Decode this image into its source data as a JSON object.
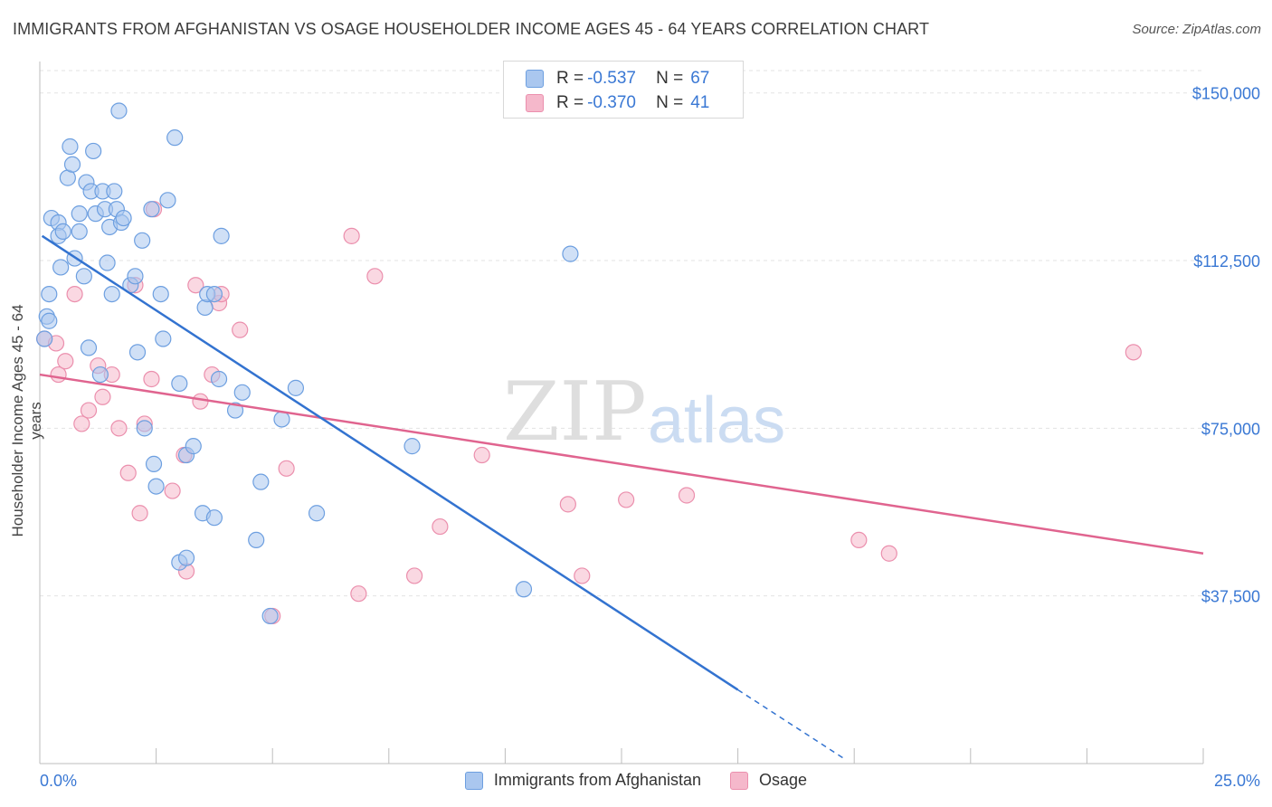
{
  "title": "IMMIGRANTS FROM AFGHANISTAN VS OSAGE HOUSEHOLDER INCOME AGES 45 - 64 YEARS CORRELATION CHART",
  "source": "Source: ZipAtlas.com",
  "watermark": {
    "zip": "ZIP",
    "atlas": "atlas"
  },
  "legend_top": {
    "rows": [
      {
        "r_label": "R = ",
        "r_value": "-0.537",
        "n_label": "N = ",
        "n_value": "67"
      },
      {
        "r_label": "R = ",
        "r_value": "-0.370",
        "n_label": "N = ",
        "n_value": "41"
      }
    ]
  },
  "colors": {
    "blue_fill": "#aac7ef",
    "blue_stroke": "#6d9fe0",
    "blue_line": "#3373d0",
    "pink_fill": "#f5b8cb",
    "pink_stroke": "#eb8fad",
    "pink_line": "#e0648f",
    "tick_text": "#3a78d4",
    "grid": "#e3e3e3"
  },
  "chart_data": {
    "type": "scatter",
    "title": "IMMIGRANTS FROM AFGHANISTAN VS OSAGE HOUSEHOLDER INCOME AGES 45 - 64 YEARS CORRELATION CHART",
    "xlabel": "",
    "ylabel": "Householder Income Ages 45 - 64 years",
    "xlim": [
      0,
      25
    ],
    "ylim": [
      0,
      155000
    ],
    "x_tick_labels": [
      "0.0%",
      "25.0%"
    ],
    "y_ticks": [
      37500,
      75000,
      112500,
      150000
    ],
    "y_tick_labels": [
      "$37,500",
      "$75,000",
      "$112,500",
      "$150,000"
    ],
    "grid": true,
    "legend_position": "bottom",
    "series": [
      {
        "name": "Immigrants from Afghanistan",
        "color": "#aac7ef",
        "trend": {
          "x0": 0.05,
          "y0": 118000,
          "x1": 15.0,
          "y1": 16500,
          "dash_to_x": 17.3,
          "dash_to_y": 1000
        },
        "points": [
          [
            0.1,
            95000
          ],
          [
            0.15,
            100000
          ],
          [
            0.2,
            99000
          ],
          [
            0.2,
            105000
          ],
          [
            0.25,
            122000
          ],
          [
            0.4,
            121000
          ],
          [
            0.4,
            118000
          ],
          [
            0.45,
            111000
          ],
          [
            0.5,
            119000
          ],
          [
            0.6,
            131000
          ],
          [
            0.65,
            138000
          ],
          [
            0.7,
            134000
          ],
          [
            0.75,
            113000
          ],
          [
            0.85,
            123000
          ],
          [
            0.85,
            119000
          ],
          [
            0.95,
            109000
          ],
          [
            1.0,
            130000
          ],
          [
            1.05,
            93000
          ],
          [
            1.1,
            128000
          ],
          [
            1.15,
            137000
          ],
          [
            1.2,
            123000
          ],
          [
            1.3,
            87000
          ],
          [
            1.35,
            128000
          ],
          [
            1.4,
            124000
          ],
          [
            1.45,
            112000
          ],
          [
            1.5,
            120000
          ],
          [
            1.55,
            105000
          ],
          [
            1.6,
            128000
          ],
          [
            1.65,
            124000
          ],
          [
            1.7,
            146000
          ],
          [
            1.75,
            121000
          ],
          [
            1.8,
            122000
          ],
          [
            1.95,
            107000
          ],
          [
            2.05,
            109000
          ],
          [
            2.1,
            92000
          ],
          [
            2.2,
            117000
          ],
          [
            2.25,
            75000
          ],
          [
            2.4,
            124000
          ],
          [
            2.45,
            67000
          ],
          [
            2.5,
            62000
          ],
          [
            2.6,
            105000
          ],
          [
            2.65,
            95000
          ],
          [
            2.75,
            126000
          ],
          [
            2.9,
            140000
          ],
          [
            3.0,
            85000
          ],
          [
            3.0,
            45000
          ],
          [
            3.15,
            46000
          ],
          [
            3.15,
            69000
          ],
          [
            3.3,
            71000
          ],
          [
            3.5,
            56000
          ],
          [
            3.55,
            102000
          ],
          [
            3.6,
            105000
          ],
          [
            3.75,
            105000
          ],
          [
            3.75,
            55000
          ],
          [
            3.85,
            86000
          ],
          [
            3.9,
            118000
          ],
          [
            4.2,
            79000
          ],
          [
            4.35,
            83000
          ],
          [
            4.65,
            50000
          ],
          [
            4.75,
            63000
          ],
          [
            4.95,
            33000
          ],
          [
            5.2,
            77000
          ],
          [
            5.5,
            84000
          ],
          [
            5.95,
            56000
          ],
          [
            8.0,
            71000
          ],
          [
            10.4,
            39000
          ],
          [
            11.4,
            114000
          ]
        ]
      },
      {
        "name": "Osage",
        "color": "#f5b8cb",
        "trend": {
          "x0": 0.0,
          "y0": 87000,
          "x1": 25.0,
          "y1": 47000
        },
        "points": [
          [
            0.1,
            95000
          ],
          [
            0.35,
            94000
          ],
          [
            0.4,
            87000
          ],
          [
            0.55,
            90000
          ],
          [
            0.75,
            105000
          ],
          [
            0.9,
            76000
          ],
          [
            1.05,
            79000
          ],
          [
            1.25,
            89000
          ],
          [
            1.35,
            82000
          ],
          [
            1.55,
            87000
          ],
          [
            1.7,
            75000
          ],
          [
            1.9,
            65000
          ],
          [
            2.05,
            107000
          ],
          [
            2.15,
            56000
          ],
          [
            2.25,
            76000
          ],
          [
            2.4,
            86000
          ],
          [
            2.45,
            124000
          ],
          [
            2.85,
            61000
          ],
          [
            3.1,
            69000
          ],
          [
            3.15,
            43000
          ],
          [
            3.35,
            107000
          ],
          [
            3.45,
            81000
          ],
          [
            3.7,
            87000
          ],
          [
            3.85,
            103000
          ],
          [
            3.9,
            105000
          ],
          [
            4.3,
            97000
          ],
          [
            5.0,
            33000
          ],
          [
            5.3,
            66000
          ],
          [
            6.7,
            118000
          ],
          [
            6.85,
            38000
          ],
          [
            7.2,
            109000
          ],
          [
            8.05,
            42000
          ],
          [
            8.6,
            53000
          ],
          [
            9.5,
            69000
          ],
          [
            11.35,
            58000
          ],
          [
            11.65,
            42000
          ],
          [
            12.6,
            59000
          ],
          [
            13.9,
            60000
          ],
          [
            17.6,
            50000
          ],
          [
            18.25,
            47000
          ],
          [
            23.5,
            92000
          ]
        ]
      }
    ]
  }
}
